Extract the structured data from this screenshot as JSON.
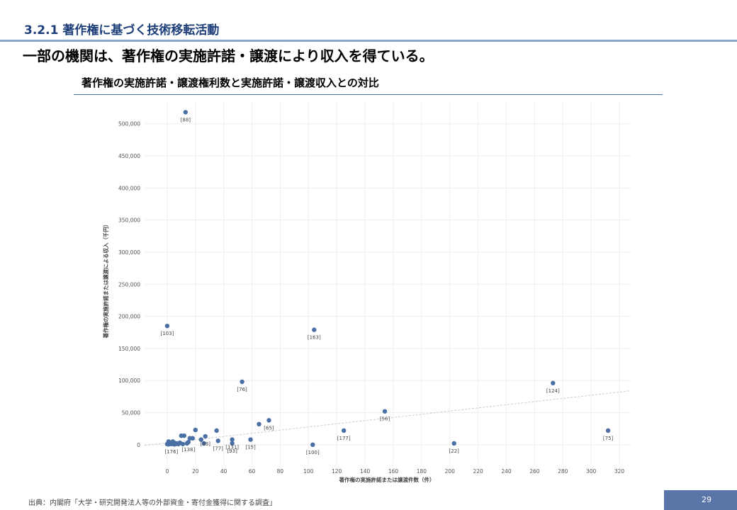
{
  "header": {
    "section_title": "3.2.1 著作権に基づく技術移転活動",
    "headline": "一部の機関は、著作権の実施許諾・譲渡により収入を得ている。"
  },
  "chart_title": "著作権の実施許諾・譲渡権利数と実施許諾・譲渡収入との対比",
  "chart_data": {
    "type": "scatter",
    "xlabel": "著作権の実施許諾または譲渡件数（件）",
    "ylabel": "著作権の実施許諾または譲渡による収入（千円）",
    "xlim": [
      -16,
      328
    ],
    "ylim": [
      -30000,
      535000
    ],
    "x_ticks": [
      0,
      20,
      40,
      60,
      80,
      100,
      120,
      140,
      160,
      180,
      200,
      220,
      240,
      260,
      280,
      300,
      320
    ],
    "y_ticks": [
      0,
      50000,
      100000,
      150000,
      200000,
      250000,
      300000,
      350000,
      400000,
      450000,
      500000
    ],
    "x_tick_labels": [
      "0",
      "20",
      "40",
      "60",
      "80",
      "100",
      "120",
      "140",
      "160",
      "180",
      "200",
      "220",
      "240",
      "260",
      "280",
      "300",
      "320"
    ],
    "y_tick_labels": [
      "0",
      "50,000",
      "100,000",
      "150,000",
      "200,000",
      "250,000",
      "300,000",
      "350,000",
      "400,000",
      "450,000",
      "500,000"
    ],
    "grid": true,
    "color": "#4a6fa5",
    "trendline": {
      "x": [
        -16,
        328
      ],
      "y": [
        -1000,
        84000
      ],
      "color": "#cccccc"
    },
    "points": [
      {
        "x": 13,
        "y": 518000,
        "label": "[88]"
      },
      {
        "x": 0,
        "y": 185000,
        "label": "[103]"
      },
      {
        "x": 104,
        "y": 179000,
        "label": "[163]"
      },
      {
        "x": 53,
        "y": 98000,
        "label": "[76]"
      },
      {
        "x": 273,
        "y": 96000,
        "label": "[124]"
      },
      {
        "x": 154,
        "y": 52000,
        "label": "[56]"
      },
      {
        "x": 72,
        "y": 38000,
        "label": "[65]"
      },
      {
        "x": 65,
        "y": 32000,
        "label": ""
      },
      {
        "x": 312,
        "y": 22000,
        "label": "[75]"
      },
      {
        "x": 125,
        "y": 22000,
        "label": "[177]"
      },
      {
        "x": 35,
        "y": 22000,
        "label": ""
      },
      {
        "x": 20,
        "y": 23000,
        "label": ""
      },
      {
        "x": 27,
        "y": 13000,
        "label": "[33]"
      },
      {
        "x": 24,
        "y": 8000,
        "label": ""
      },
      {
        "x": 46,
        "y": 8000,
        "label": "[131]"
      },
      {
        "x": 59,
        "y": 8000,
        "label": "[15]"
      },
      {
        "x": 46,
        "y": 2000,
        "label": "[93]"
      },
      {
        "x": 36,
        "y": 6000,
        "label": "[77]"
      },
      {
        "x": 26,
        "y": 2000,
        "label": ""
      },
      {
        "x": 18,
        "y": 10000,
        "label": ""
      },
      {
        "x": 16,
        "y": 10000,
        "label": ""
      },
      {
        "x": 15,
        "y": 4000,
        "label": "[138]"
      },
      {
        "x": 14,
        "y": 2000,
        "label": ""
      },
      {
        "x": 12,
        "y": 14000,
        "label": ""
      },
      {
        "x": 10,
        "y": 14000,
        "label": ""
      },
      {
        "x": 11,
        "y": 1000,
        "label": ""
      },
      {
        "x": 9,
        "y": 3000,
        "label": ""
      },
      {
        "x": 8,
        "y": 1000,
        "label": ""
      },
      {
        "x": 7,
        "y": 2000,
        "label": ""
      },
      {
        "x": 6,
        "y": 1000,
        "label": ""
      },
      {
        "x": 5,
        "y": 3000,
        "label": ""
      },
      {
        "x": 5,
        "y": 500,
        "label": ""
      },
      {
        "x": 4,
        "y": 5000,
        "label": ""
      },
      {
        "x": 3,
        "y": 1000,
        "label": "[176]"
      },
      {
        "x": 2,
        "y": 2000,
        "label": ""
      },
      {
        "x": 1,
        "y": 5000,
        "label": ""
      },
      {
        "x": 1,
        "y": 500,
        "label": ""
      },
      {
        "x": 0,
        "y": 1000,
        "label": ""
      },
      {
        "x": 103,
        "y": 0,
        "label": "[100]"
      },
      {
        "x": 203,
        "y": 2000,
        "label": "[22]"
      }
    ]
  },
  "footer": {
    "source": "出典：内閣府「大学・研究開発法人等の外部資金・寄付金獲得に関する調査」",
    "page_number": "29"
  }
}
